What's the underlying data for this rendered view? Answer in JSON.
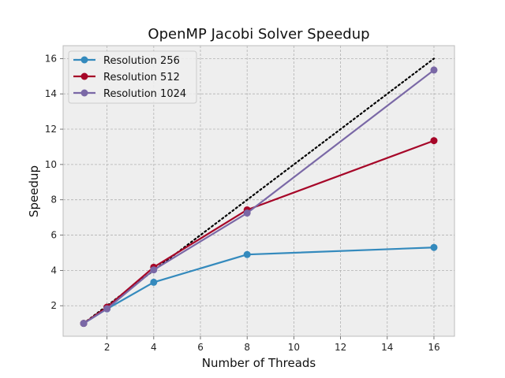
{
  "chart_data": {
    "type": "line",
    "title": "OpenMP Jacobi Solver Speedup",
    "xlabel": "Number of Threads",
    "ylabel": "Speedup",
    "xlim": [
      0.12,
      16.88
    ],
    "ylim": [
      0.27,
      16.73
    ],
    "xticks": [
      2,
      4,
      6,
      8,
      10,
      12,
      14,
      16
    ],
    "yticks": [
      2,
      4,
      6,
      8,
      10,
      12,
      14,
      16
    ],
    "grid": true,
    "legend_position": "top-left",
    "series": [
      {
        "name": "Resolution 256",
        "color": "#348abd",
        "marker": "circle",
        "x": [
          1,
          2,
          4,
          8,
          16
        ],
        "y": [
          1.0,
          1.82,
          3.33,
          4.9,
          5.3
        ]
      },
      {
        "name": "Resolution 512",
        "color": "#a60628",
        "marker": "circle",
        "x": [
          1,
          2,
          4,
          8,
          16
        ],
        "y": [
          1.0,
          1.92,
          4.18,
          7.43,
          11.35
        ]
      },
      {
        "name": "Resolution 1024",
        "color": "#7a68a6",
        "marker": "circle",
        "x": [
          1,
          2,
          4,
          8,
          16
        ],
        "y": [
          1.0,
          1.83,
          4.03,
          7.25,
          15.35
        ]
      }
    ],
    "reference_line": {
      "style": "dotted",
      "color": "#000000",
      "x": [
        1,
        16
      ],
      "y": [
        1,
        16
      ]
    }
  }
}
